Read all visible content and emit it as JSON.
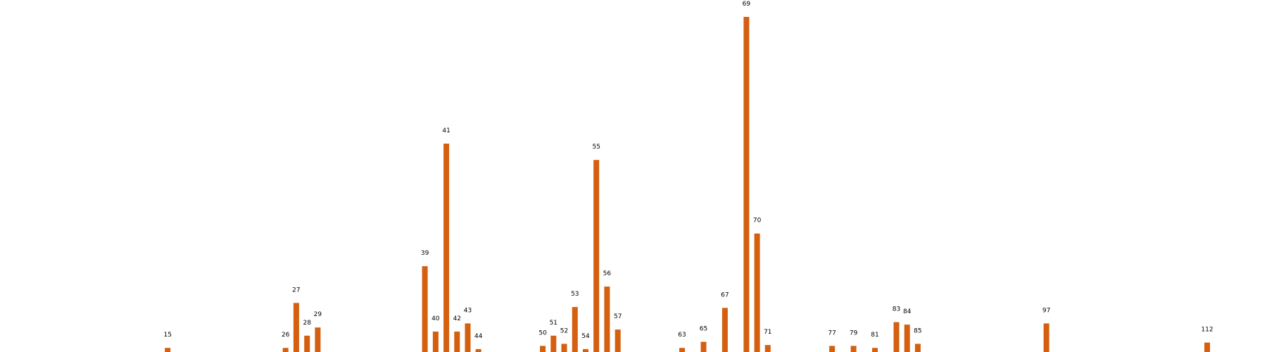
{
  "chart_data": {
    "type": "bar",
    "title": "",
    "xlabel": "",
    "ylabel": "",
    "categories": [
      "15",
      "26",
      "27",
      "28",
      "29",
      "39",
      "40",
      "41",
      "42",
      "43",
      "44",
      "50",
      "51",
      "52",
      "53",
      "54",
      "55",
      "56",
      "57",
      "63",
      "65",
      "67",
      "69",
      "70",
      "71",
      "77",
      "79",
      "81",
      "83",
      "84",
      "85",
      "97",
      "112"
    ],
    "values": [
      1,
      1,
      12,
      4,
      6,
      21,
      5,
      51,
      5,
      7,
      0.7,
      1.5,
      4,
      2,
      11,
      0.7,
      47,
      16,
      5.5,
      1,
      2.5,
      10.8,
      82,
      29,
      1.7,
      1.5,
      1.5,
      1,
      7.3,
      6.7,
      2,
      7,
      2.3
    ],
    "xlim": [
      5,
      112
    ],
    "ylim": [
      0,
      82
    ],
    "grid": false,
    "legend": "none",
    "bar_color": "#d45f0f"
  }
}
